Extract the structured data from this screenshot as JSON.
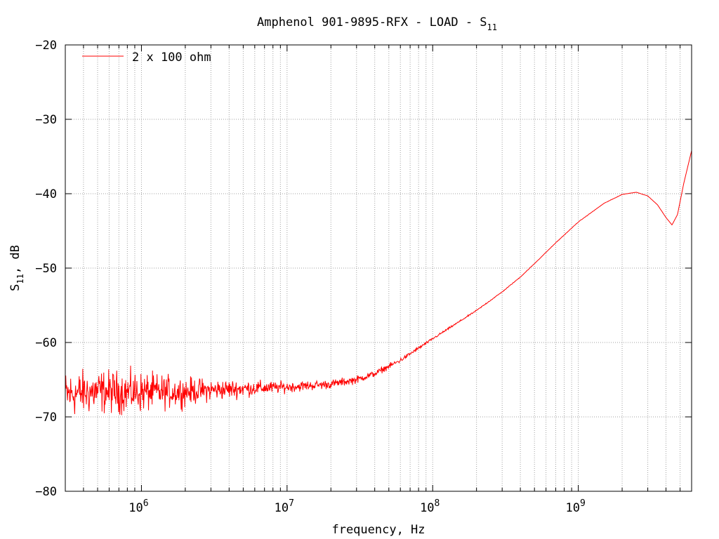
{
  "chart_data": {
    "type": "line",
    "title": "Amphenol 901-9895-RFX - LOAD - S",
    "title_subscript": "11",
    "xlabel": "frequency, Hz",
    "ylabel_main": "S",
    "ylabel_subscript": "11",
    "ylabel_unit": ", dB",
    "x_scale": "log",
    "xlim": [
      300000,
      6000000000
    ],
    "ylim": [
      -80,
      -20
    ],
    "y_ticks": [
      -20,
      -30,
      -40,
      -50,
      -60,
      -70,
      -80
    ],
    "x_major_ticks": [
      {
        "value": 1000000,
        "base": "10",
        "exp": "6"
      },
      {
        "value": 10000000,
        "base": "10",
        "exp": "7"
      },
      {
        "value": 100000000,
        "base": "10",
        "exp": "8"
      },
      {
        "value": 1000000000,
        "base": "10",
        "exp": "9"
      }
    ],
    "grid": true,
    "legend_position": "top-left",
    "series": [
      {
        "name": "2 x 100 ohm",
        "color": "#ff0000",
        "noise": [
          {
            "x": 300000,
            "amp": 3.0
          },
          {
            "x": 1000000,
            "amp": 2.6
          },
          {
            "x": 3000000,
            "amp": 1.4
          },
          {
            "x": 10000000,
            "amp": 0.7
          },
          {
            "x": 30000000,
            "amp": 0.5
          },
          {
            "x": 100000000,
            "amp": 0.15
          },
          {
            "x": 300000000,
            "amp": 0.05
          },
          {
            "x": 6000000000,
            "amp": 0.0
          }
        ],
        "points": [
          {
            "x": 300000,
            "y": -67.0
          },
          {
            "x": 500000,
            "y": -66.6
          },
          {
            "x": 1000000,
            "y": -66.7
          },
          {
            "x": 2000000,
            "y": -66.6
          },
          {
            "x": 3000000,
            "y": -66.4
          },
          {
            "x": 5000000,
            "y": -66.2
          },
          {
            "x": 10000000,
            "y": -66.0
          },
          {
            "x": 20000000,
            "y": -65.6
          },
          {
            "x": 30000000,
            "y": -65.0
          },
          {
            "x": 40000000,
            "y": -64.2
          },
          {
            "x": 60000000,
            "y": -62.4
          },
          {
            "x": 100000000,
            "y": -59.5
          },
          {
            "x": 200000000,
            "y": -55.7
          },
          {
            "x": 300000000,
            "y": -53.2
          },
          {
            "x": 400000000,
            "y": -51.2
          },
          {
            "x": 500000000,
            "y": -49.4
          },
          {
            "x": 700000000,
            "y": -46.6
          },
          {
            "x": 1000000000,
            "y": -43.8
          },
          {
            "x": 1500000000,
            "y": -41.3
          },
          {
            "x": 2000000000,
            "y": -40.1
          },
          {
            "x": 2500000000,
            "y": -39.8
          },
          {
            "x": 3000000000,
            "y": -40.3
          },
          {
            "x": 3500000000,
            "y": -41.5
          },
          {
            "x": 4000000000,
            "y": -43.2
          },
          {
            "x": 4400000000,
            "y": -44.2
          },
          {
            "x": 4800000000,
            "y": -42.8
          },
          {
            "x": 5300000000,
            "y": -38.6
          },
          {
            "x": 6000000000,
            "y": -34.2
          }
        ]
      }
    ]
  }
}
